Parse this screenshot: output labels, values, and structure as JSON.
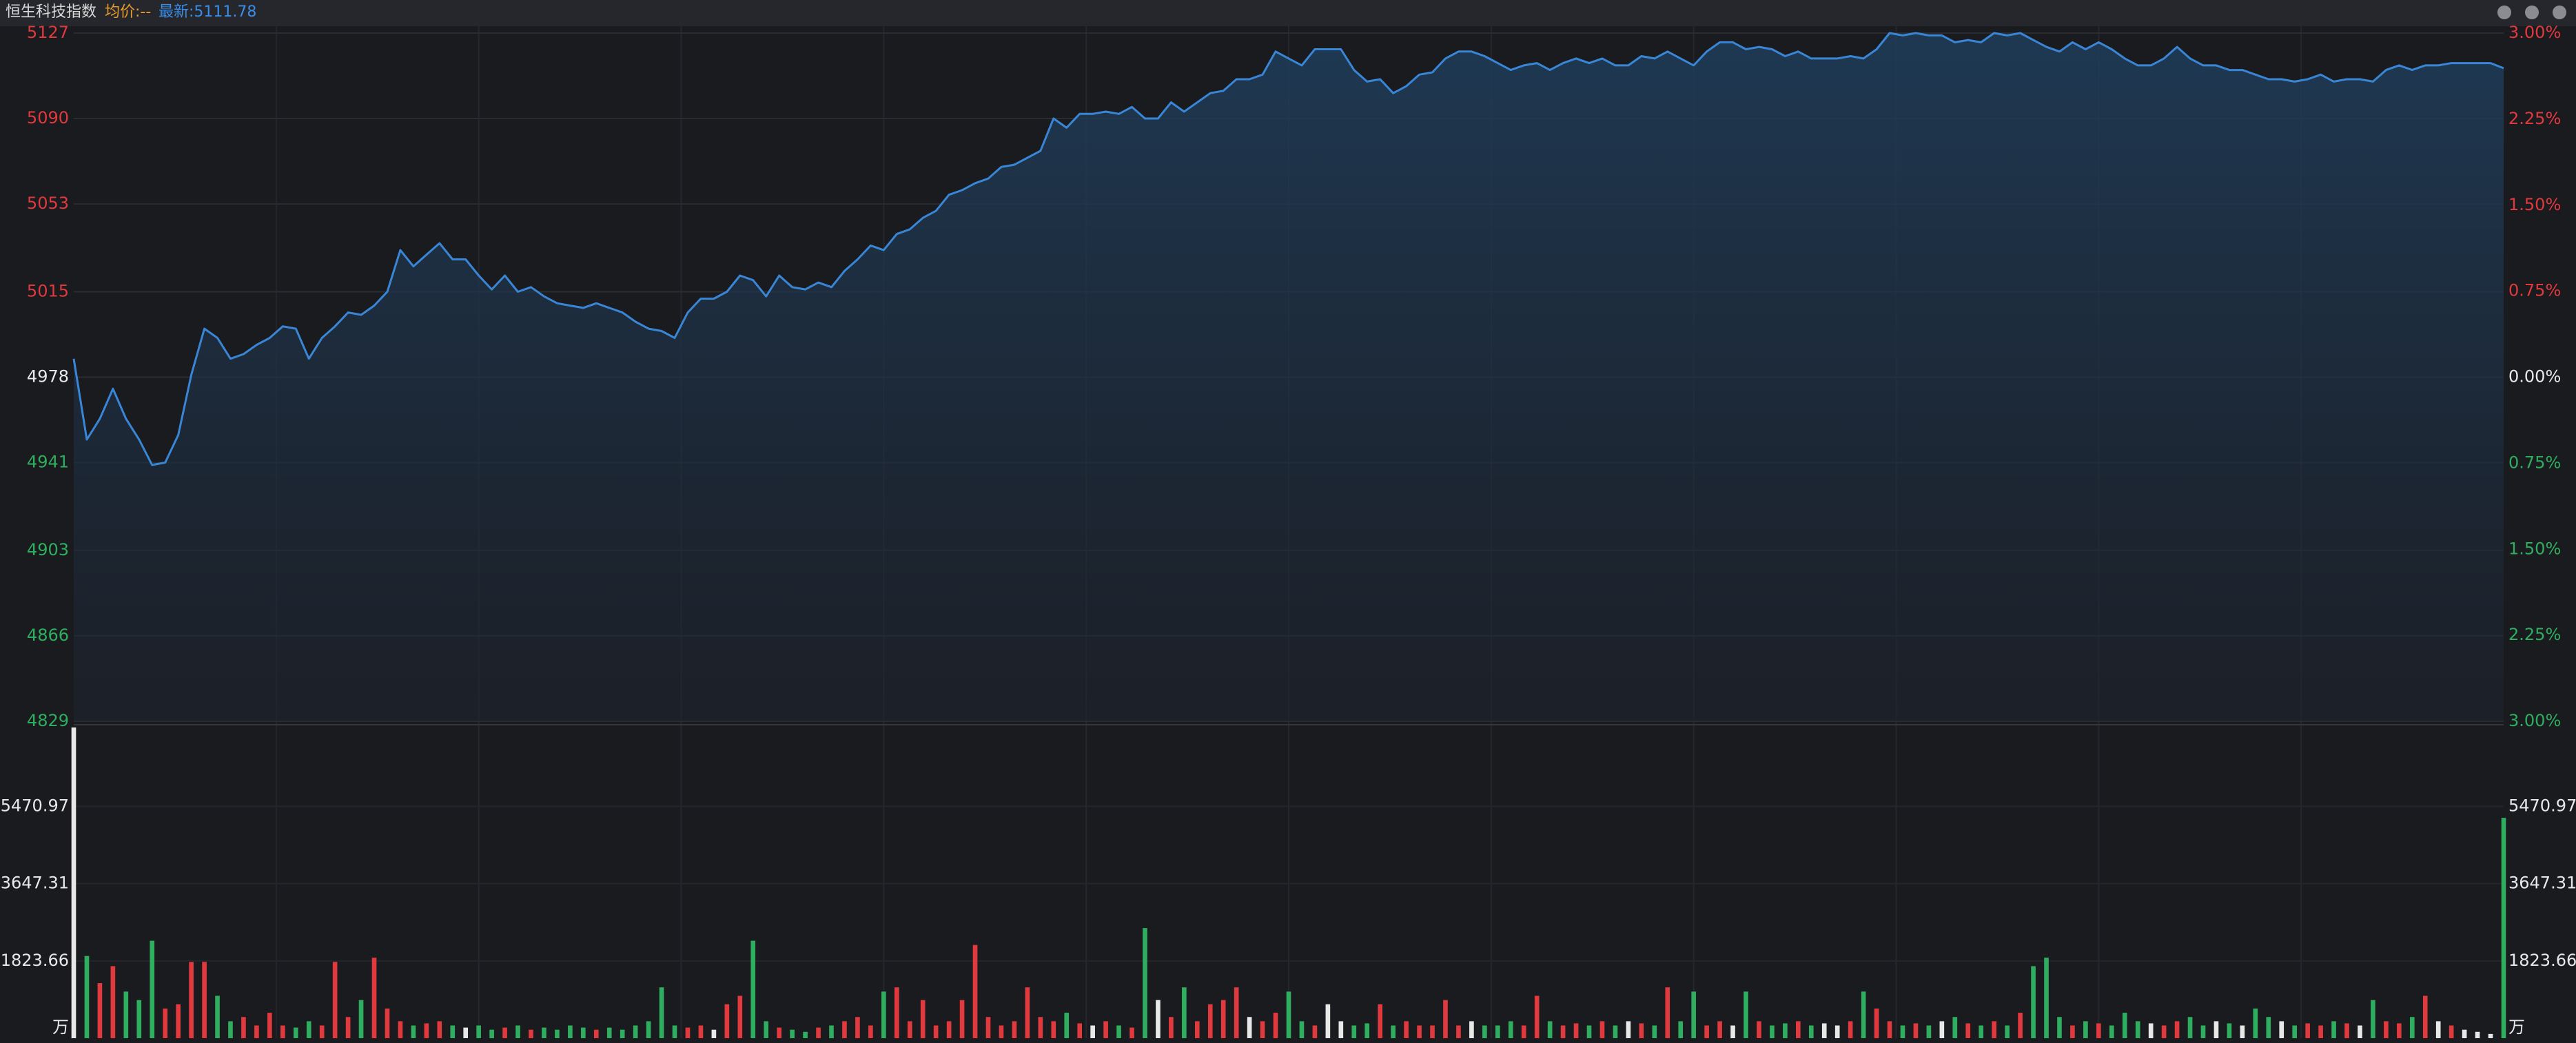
{
  "header": {
    "title": "恒生科技指数",
    "avg_label": "均价:--",
    "latest_label": "最新:5111.78"
  },
  "chart_data": [
    {
      "type": "line",
      "color": "#3a86d6",
      "up_color": "#e0393e",
      "down_color": "#2fae5f",
      "flat_color": "#e8e8e8",
      "grid": true,
      "ylim": [
        4829,
        5127
      ],
      "yticks": [
        5127,
        5090,
        5053,
        5015,
        4978,
        4941,
        4903,
        4866,
        4829
      ],
      "y2lim": [
        -3,
        3
      ],
      "y2ticks": [
        {
          "value": 3,
          "label": "3.00%"
        },
        {
          "value": 2.25,
          "label": "2.25%"
        },
        {
          "value": 1.5,
          "label": "1.50%"
        },
        {
          "value": 0.75,
          "label": "0.75%"
        },
        {
          "value": 0,
          "label": "0.00%"
        },
        {
          "value": -0.75,
          "label": "0.75%"
        },
        {
          "value": -1.5,
          "label": "1.50%"
        },
        {
          "value": -2.25,
          "label": "2.25%"
        },
        {
          "value": -3,
          "label": "3.00%"
        }
      ],
      "values": [
        4986,
        4951,
        4960,
        4973,
        4960,
        4951,
        4940,
        4941,
        4953,
        4979,
        4999,
        4995,
        4986,
        4988,
        4992,
        4995,
        5000,
        4999,
        4986,
        4995,
        5000,
        5006,
        5005,
        5009,
        5015,
        5033,
        5026,
        5031,
        5036,
        5029,
        5029,
        5022,
        5016,
        5022,
        5015,
        5017,
        5013,
        5010,
        5009,
        5008,
        5010,
        5008,
        5006,
        5002,
        4999,
        4998,
        4995,
        5006,
        5012,
        5012,
        5015,
        5022,
        5020,
        5013,
        5022,
        5017,
        5016,
        5019,
        5017,
        5024,
        5029,
        5035,
        5033,
        5040,
        5042,
        5047,
        5050,
        5057,
        5059,
        5062,
        5064,
        5069,
        5070,
        5073,
        5076,
        5090,
        5086,
        5092,
        5092,
        5093,
        5092,
        5095,
        5090,
        5090,
        5097,
        5093,
        5097,
        5101,
        5102,
        5107,
        5107,
        5109,
        5119,
        5116,
        5113,
        5120,
        5120,
        5120,
        5111,
        5106,
        5107,
        5101,
        5104,
        5109,
        5110,
        5116,
        5119,
        5119,
        5117,
        5114,
        5111,
        5113,
        5114,
        5111,
        5114,
        5116,
        5114,
        5116,
        5113,
        5113,
        5117,
        5116,
        5119,
        5116,
        5113,
        5119,
        5123,
        5123,
        5120,
        5121,
        5120,
        5117,
        5119,
        5116,
        5116,
        5116,
        5117,
        5116,
        5120,
        5127,
        5126,
        5127,
        5126,
        5126,
        5123,
        5124,
        5123,
        5127,
        5126,
        5127,
        5124,
        5121,
        5119,
        5123,
        5120,
        5123,
        5120,
        5116,
        5113,
        5113,
        5116,
        5121,
        5116,
        5113,
        5113,
        5111,
        5111,
        5109,
        5107,
        5107,
        5106,
        5107,
        5109,
        5106,
        5107,
        5107,
        5106,
        5111,
        5113,
        5111,
        5113,
        5113,
        5114,
        5114,
        5114,
        5114,
        5111.78
      ]
    },
    {
      "type": "bar",
      "ylim": [
        0,
        7333
      ],
      "yticks": [
        5470.97,
        3647.31,
        1823.66
      ],
      "unit_label": "万",
      "values": [
        7333,
        1940,
        1300,
        1700,
        1100,
        900,
        2300,
        700,
        800,
        1800,
        1800,
        1000,
        400,
        500,
        300,
        600,
        300,
        250,
        400,
        300,
        1800,
        500,
        900,
        1900,
        700,
        400,
        300,
        350,
        400,
        300,
        250,
        300,
        200,
        250,
        300,
        200,
        250,
        200,
        300,
        250,
        200,
        250,
        200,
        300,
        400,
        1200,
        300,
        250,
        300,
        200,
        800,
        1000,
        2300,
        400,
        250,
        200,
        150,
        250,
        300,
        400,
        500,
        300,
        1100,
        1200,
        400,
        900,
        300,
        400,
        900,
        2200,
        500,
        300,
        400,
        1200,
        500,
        400,
        600,
        350,
        300,
        400,
        300,
        250,
        2600,
        900,
        500,
        1200,
        400,
        800,
        900,
        1200,
        500,
        400,
        600,
        1100,
        400,
        300,
        800,
        400,
        300,
        350,
        800,
        300,
        400,
        300,
        300,
        900,
        300,
        400,
        300,
        300,
        400,
        300,
        1000,
        400,
        300,
        350,
        300,
        400,
        300,
        400,
        350,
        300,
        1200,
        400,
        1100,
        300,
        400,
        300,
        1100,
        400,
        300,
        350,
        400,
        300,
        350,
        300,
        400,
        1100,
        700,
        400,
        300,
        350,
        300,
        400,
        500,
        350,
        300,
        400,
        300,
        600,
        1700,
        1900,
        500,
        300,
        400,
        350,
        300,
        600,
        400,
        350,
        300,
        400,
        500,
        300,
        400,
        350,
        300,
        700,
        500,
        400,
        300,
        350,
        300,
        400,
        350,
        300,
        900,
        400,
        350,
        500,
        1000,
        400,
        300,
        200,
        150,
        100,
        5200
      ]
    }
  ]
}
